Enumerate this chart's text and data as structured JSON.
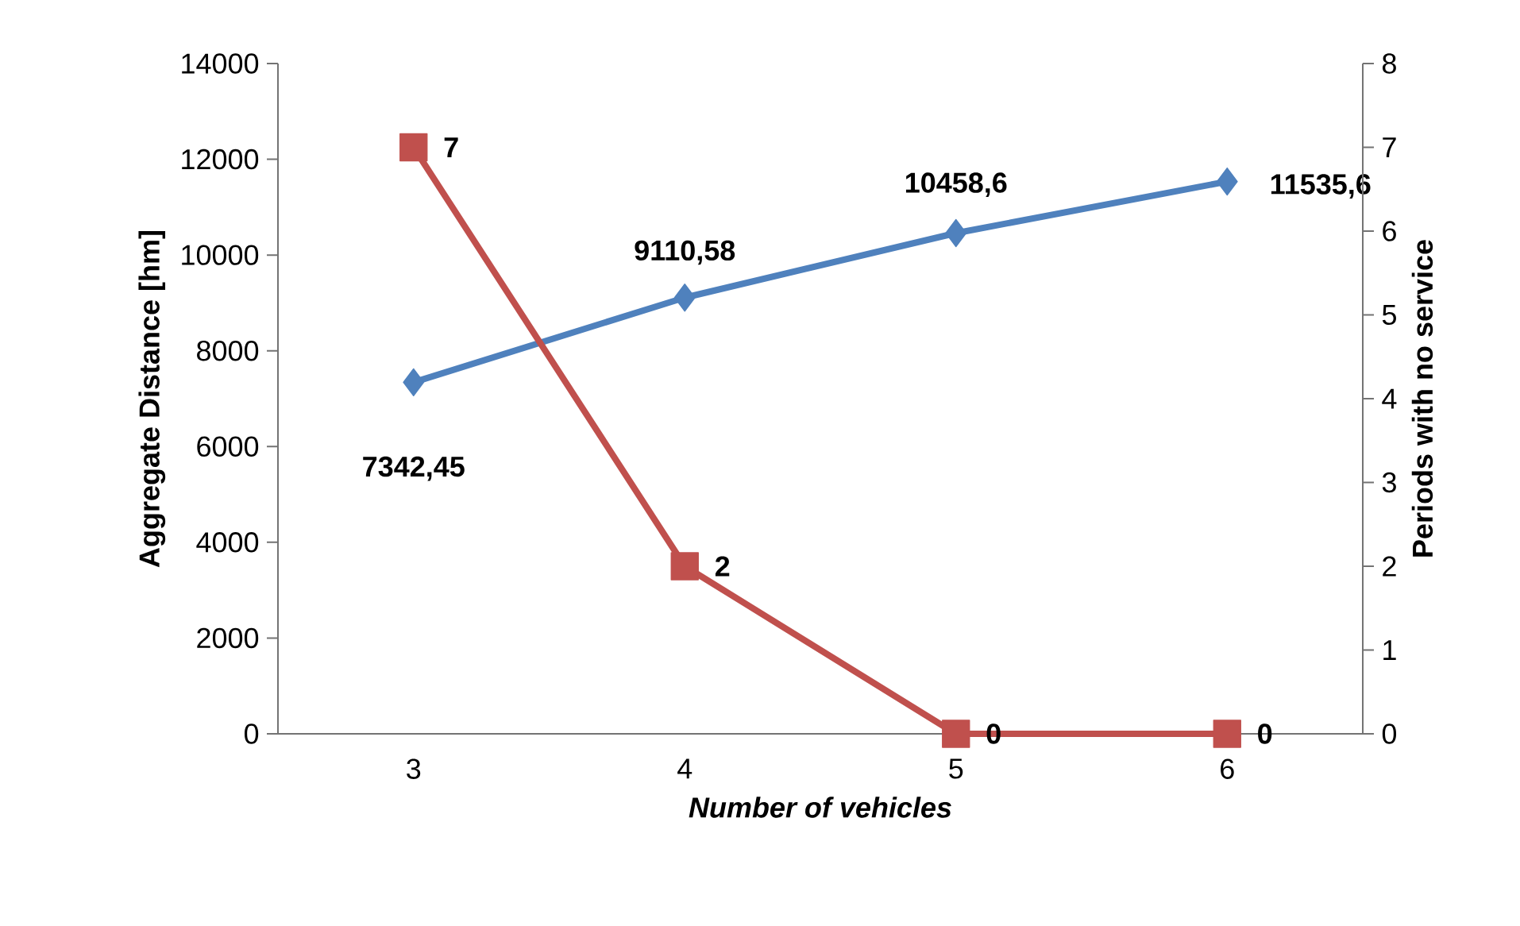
{
  "chart_data": {
    "type": "line",
    "xlabel": "Number of vehicles",
    "ylabel": "Aggregate Distance [hm]",
    "y2label": "Periods with no service",
    "categories": [
      "3",
      "4",
      "5",
      "6"
    ],
    "series": [
      {
        "color": "#4f81bd",
        "marker": "diamond",
        "values": [
          7342.45,
          9110.58,
          10458.6,
          11535.6
        ],
        "value_labels": [
          "7342,45",
          "9110,58",
          "10458,6",
          "11535,6"
        ]
      },
      {
        "color": "#c0504d",
        "marker": "square",
        "axis": "y2",
        "values": [
          7,
          2,
          0,
          0
        ],
        "value_labels": [
          "7",
          "2",
          "0",
          "0"
        ]
      }
    ],
    "ylim": [
      0,
      14000
    ],
    "yticks": [
      0,
      2000,
      4000,
      6000,
      8000,
      10000,
      12000,
      14000
    ],
    "y2lim": [
      0,
      8
    ],
    "y2ticks": [
      0,
      1,
      2,
      3,
      4,
      5,
      6,
      7,
      8
    ]
  }
}
